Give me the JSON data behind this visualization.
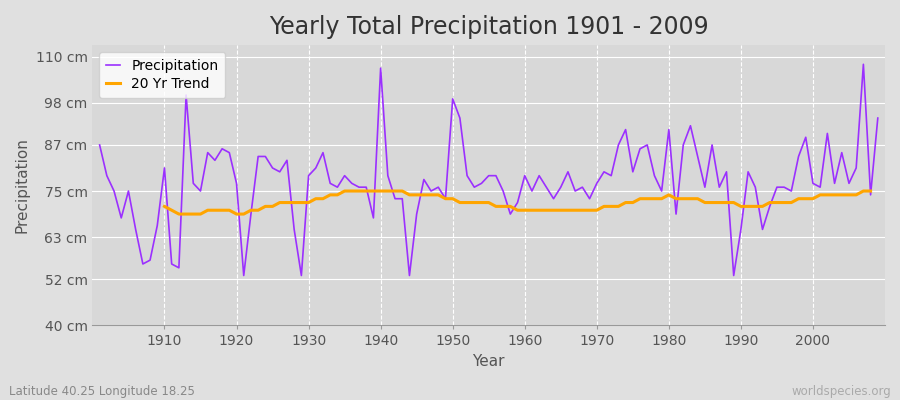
{
  "title": "Yearly Total Precipitation 1901 - 2009",
  "xlabel": "Year",
  "ylabel": "Precipitation",
  "subtitle": "Latitude 40.25 Longitude 18.25",
  "watermark": "worldspecies.org",
  "years": [
    1901,
    1902,
    1903,
    1904,
    1905,
    1906,
    1907,
    1908,
    1909,
    1910,
    1911,
    1912,
    1913,
    1914,
    1915,
    1916,
    1917,
    1918,
    1919,
    1920,
    1921,
    1922,
    1923,
    1924,
    1925,
    1926,
    1927,
    1928,
    1929,
    1930,
    1931,
    1932,
    1933,
    1934,
    1935,
    1936,
    1937,
    1938,
    1939,
    1940,
    1941,
    1942,
    1943,
    1944,
    1945,
    1946,
    1947,
    1948,
    1949,
    1950,
    1951,
    1952,
    1953,
    1954,
    1955,
    1956,
    1957,
    1958,
    1959,
    1960,
    1961,
    1962,
    1963,
    1964,
    1965,
    1966,
    1967,
    1968,
    1969,
    1970,
    1971,
    1972,
    1973,
    1974,
    1975,
    1976,
    1977,
    1978,
    1979,
    1980,
    1981,
    1982,
    1983,
    1984,
    1985,
    1986,
    1987,
    1988,
    1989,
    1990,
    1991,
    1992,
    1993,
    1994,
    1995,
    1996,
    1997,
    1998,
    1999,
    2000,
    2001,
    2002,
    2003,
    2004,
    2005,
    2006,
    2007,
    2008,
    2009
  ],
  "precip": [
    87,
    79,
    75,
    68,
    75,
    65,
    56,
    57,
    66,
    81,
    56,
    55,
    100,
    77,
    75,
    85,
    83,
    86,
    85,
    77,
    53,
    69,
    84,
    84,
    81,
    80,
    83,
    65,
    53,
    79,
    81,
    85,
    77,
    76,
    79,
    77,
    76,
    76,
    68,
    107,
    79,
    73,
    73,
    53,
    69,
    78,
    75,
    76,
    73,
    99,
    94,
    79,
    76,
    77,
    79,
    79,
    75,
    69,
    72,
    79,
    75,
    79,
    76,
    73,
    76,
    80,
    75,
    76,
    73,
    77,
    80,
    79,
    87,
    91,
    80,
    86,
    87,
    79,
    75,
    91,
    69,
    87,
    92,
    84,
    76,
    87,
    76,
    80,
    53,
    65,
    80,
    76,
    65,
    71,
    76,
    76,
    75,
    84,
    89,
    77,
    76,
    90,
    77,
    85,
    77,
    81,
    108,
    74,
    94
  ],
  "trend": [
    null,
    null,
    null,
    null,
    null,
    null,
    null,
    null,
    null,
    71,
    70,
    69,
    69,
    69,
    69,
    70,
    70,
    70,
    70,
    69,
    69,
    70,
    70,
    71,
    71,
    72,
    72,
    72,
    72,
    72,
    73,
    73,
    74,
    74,
    75,
    75,
    75,
    75,
    75,
    75,
    75,
    75,
    75,
    74,
    74,
    74,
    74,
    74,
    73,
    73,
    72,
    72,
    72,
    72,
    72,
    71,
    71,
    71,
    70,
    70,
    70,
    70,
    70,
    70,
    70,
    70,
    70,
    70,
    70,
    70,
    71,
    71,
    71,
    72,
    72,
    73,
    73,
    73,
    73,
    74,
    73,
    73,
    73,
    73,
    72,
    72,
    72,
    72,
    72,
    71,
    71,
    71,
    71,
    72,
    72,
    72,
    72,
    73,
    73,
    73,
    74,
    74,
    74,
    74,
    74,
    74,
    75,
    75,
    null
  ],
  "precip_color": "#9B30FF",
  "trend_color": "#FFA500",
  "bg_color": "#E0E0E0",
  "plot_bg_color": "#D8D8D8",
  "yticks": [
    40,
    52,
    63,
    75,
    87,
    98,
    110
  ],
  "ytick_labels": [
    "40 cm",
    "52 cm",
    "63 cm",
    "75 cm",
    "87 cm",
    "98 cm",
    "110 cm"
  ],
  "ylim": [
    40,
    113
  ],
  "xlim": [
    1900,
    2010
  ],
  "title_fontsize": 17,
  "axis_label_fontsize": 11,
  "tick_fontsize": 10,
  "legend_fontsize": 10,
  "xticks": [
    1910,
    1920,
    1930,
    1940,
    1950,
    1960,
    1970,
    1980,
    1990,
    2000
  ]
}
